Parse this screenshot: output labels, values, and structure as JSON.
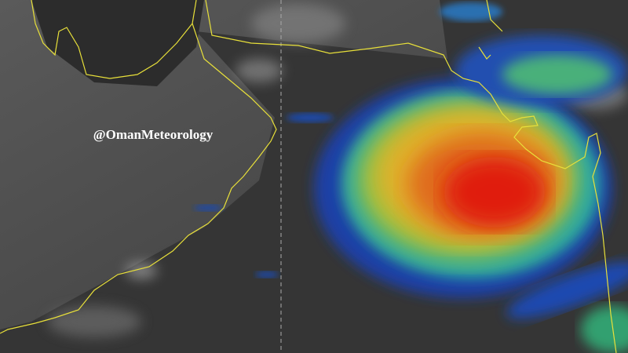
{
  "watermark": "@OmanMeteorology"
}
